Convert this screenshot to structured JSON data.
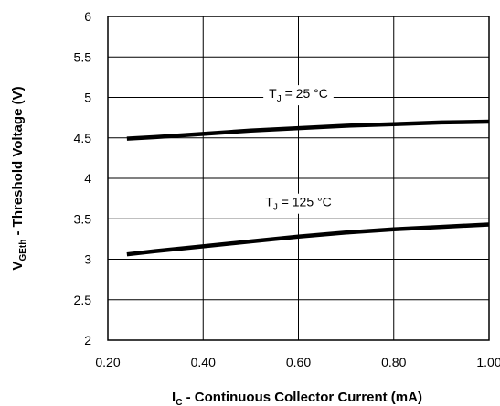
{
  "chart_data": {
    "type": "line",
    "xlabel": {
      "main": "I",
      "sub": "C",
      "rest": " - Continuous Collector Current (mA)"
    },
    "ylabel": {
      "main": "V",
      "sub": "GEth",
      "rest": " - Threshold Voltage (V)"
    },
    "xlim": [
      0.2,
      1.0
    ],
    "ylim": [
      2,
      6
    ],
    "xticks": [
      0.2,
      0.4,
      0.6,
      0.8,
      1.0
    ],
    "xtick_labels": [
      "0.20",
      "0.40",
      "0.60",
      "0.80",
      "1.00"
    ],
    "yticks": [
      2,
      2.5,
      3,
      3.5,
      4,
      4.5,
      5,
      5.5,
      6
    ],
    "ytick_labels": [
      "2",
      "2.5",
      "3",
      "3.5",
      "4",
      "4.5",
      "5",
      "5.5",
      "6"
    ],
    "grid": true,
    "series": [
      {
        "label": {
          "main": "T",
          "sub": "J",
          "rest": " = 25 °C"
        },
        "color": "#000000",
        "x": [
          0.24,
          0.3,
          0.4,
          0.5,
          0.6,
          0.7,
          0.8,
          0.9,
          1.0
        ],
        "y": [
          4.49,
          4.51,
          4.55,
          4.59,
          4.62,
          4.65,
          4.67,
          4.69,
          4.7
        ]
      },
      {
        "label": {
          "main": "T",
          "sub": "J",
          "rest": " = 125 °C"
        },
        "color": "#000000",
        "x": [
          0.24,
          0.3,
          0.4,
          0.5,
          0.6,
          0.7,
          0.8,
          0.9,
          1.0
        ],
        "y": [
          3.06,
          3.1,
          3.16,
          3.22,
          3.28,
          3.33,
          3.37,
          3.4,
          3.43
        ]
      }
    ]
  }
}
